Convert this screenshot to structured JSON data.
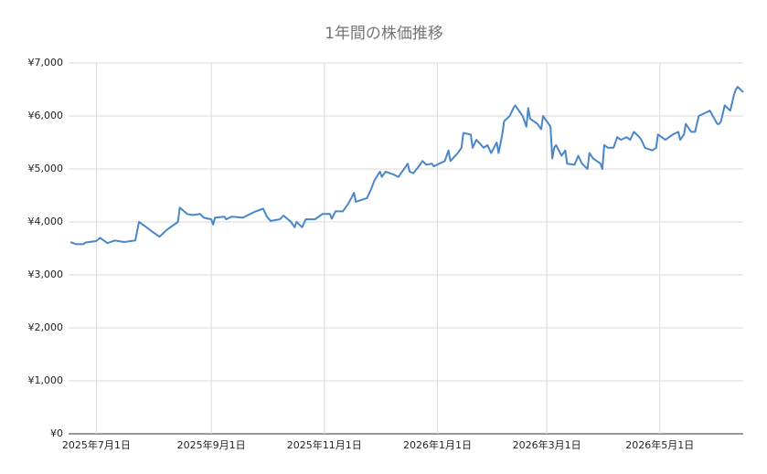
{
  "chart_data": {
    "type": "line",
    "title": "1年間の株価推移",
    "color": "#4a86c8",
    "grid": true,
    "xlim": [
      "2025-06-16",
      "2026-06-15"
    ],
    "xticks": [
      {
        "value": "2025-07-01",
        "label": "2025年7月1日"
      },
      {
        "value": "2025-09-01",
        "label": "2025年9月1日"
      },
      {
        "value": "2025-11-01",
        "label": "2025年11月1日"
      },
      {
        "value": "2026-01-01",
        "label": "2026年1月1日"
      },
      {
        "value": "2026-03-01",
        "label": "2026年3月1日"
      },
      {
        "value": "2026-05-01",
        "label": "2026年5月1日"
      }
    ],
    "ylim": [
      0,
      7000
    ],
    "yticks": [
      {
        "value": 0,
        "label": "¥0"
      },
      {
        "value": 1000,
        "label": "¥1,000"
      },
      {
        "value": 2000,
        "label": "¥2,000"
      },
      {
        "value": 3000,
        "label": "¥3,000"
      },
      {
        "value": 4000,
        "label": "¥4,000"
      },
      {
        "value": 5000,
        "label": "¥5,000"
      },
      {
        "value": 6000,
        "label": "¥6,000"
      },
      {
        "value": 7000,
        "label": "¥7,000"
      }
    ],
    "x": [
      "2025-06-17",
      "2025-06-20",
      "2025-06-24",
      "2025-06-25",
      "2025-07-01",
      "2025-07-03",
      "2025-07-07",
      "2025-07-11",
      "2025-07-16",
      "2025-07-22",
      "2025-07-24",
      "2025-07-28",
      "2025-07-31",
      "2025-08-04",
      "2025-08-08",
      "2025-08-14",
      "2025-08-15",
      "2025-08-19",
      "2025-08-22",
      "2025-08-26",
      "2025-08-28",
      "2025-09-01",
      "2025-09-02",
      "2025-09-03",
      "2025-09-08",
      "2025-09-09",
      "2025-09-12",
      "2025-09-18",
      "2025-09-22",
      "2025-09-25",
      "2025-09-29",
      "2025-10-01",
      "2025-10-03",
      "2025-10-08",
      "2025-10-10",
      "2025-10-14",
      "2025-10-16",
      "2025-10-17",
      "2025-10-20",
      "2025-10-22",
      "2025-10-27",
      "2025-10-31",
      "2025-11-04",
      "2025-11-05",
      "2025-11-07",
      "2025-11-11",
      "2025-11-14",
      "2025-11-17",
      "2025-11-18",
      "2025-11-24",
      "2025-11-26",
      "2025-11-28",
      "2025-12-01",
      "2025-12-02",
      "2025-12-04",
      "2025-12-08",
      "2025-12-11",
      "2025-12-15",
      "2025-12-16",
      "2025-12-17",
      "2025-12-19",
      "2025-12-22",
      "2025-12-24",
      "2025-12-26",
      "2025-12-29",
      "2025-12-30",
      "2026-01-05",
      "2026-01-07",
      "2026-01-08",
      "2026-01-12",
      "2026-01-14",
      "2026-01-15",
      "2026-01-19",
      "2026-01-20",
      "2026-01-22",
      "2026-01-26",
      "2026-01-28",
      "2026-01-30",
      "2026-02-02",
      "2026-02-03",
      "2026-02-05",
      "2026-02-06",
      "2026-02-09",
      "2026-02-11",
      "2026-02-12",
      "2026-02-16",
      "2026-02-18",
      "2026-02-19",
      "2026-02-20",
      "2026-02-24",
      "2026-02-26",
      "2026-02-27",
      "2026-03-03",
      "2026-03-04",
      "2026-03-05",
      "2026-03-06",
      "2026-03-09",
      "2026-03-11",
      "2026-03-12",
      "2026-03-16",
      "2026-03-18",
      "2026-03-20",
      "2026-03-23",
      "2026-03-24",
      "2026-03-26",
      "2026-03-30",
      "2026-03-31",
      "2026-04-01",
      "2026-04-03",
      "2026-04-06",
      "2026-04-08",
      "2026-04-10",
      "2026-04-13",
      "2026-04-15",
      "2026-04-17",
      "2026-04-20",
      "2026-04-21",
      "2026-04-23",
      "2026-04-27",
      "2026-04-29",
      "2026-04-30",
      "2026-05-04",
      "2026-05-08",
      "2026-05-11",
      "2026-05-12",
      "2026-05-14",
      "2026-05-15",
      "2026-05-18",
      "2026-05-20",
      "2026-05-22",
      "2026-05-25",
      "2026-05-28",
      "2026-06-01",
      "2026-06-02",
      "2026-06-03",
      "2026-06-05",
      "2026-06-08",
      "2026-06-09",
      "2026-06-10",
      "2026-06-11",
      "2026-06-12",
      "2026-06-15"
    ],
    "values": [
      3620,
      3580,
      3580,
      3610,
      3640,
      3700,
      3600,
      3650,
      3620,
      3650,
      4000,
      3900,
      3820,
      3720,
      3850,
      4000,
      4270,
      4150,
      4130,
      4150,
      4080,
      4050,
      3950,
      4080,
      4100,
      4050,
      4100,
      4080,
      4150,
      4200,
      4250,
      4100,
      4020,
      4050,
      4120,
      4000,
      3900,
      4000,
      3900,
      4050,
      4050,
      4150,
      4150,
      4060,
      4200,
      4200,
      4350,
      4550,
      4380,
      4450,
      4600,
      4780,
      4950,
      4850,
      4950,
      4900,
      4850,
      5050,
      5100,
      4950,
      4920,
      5050,
      5150,
      5080,
      5100,
      5050,
      5150,
      5350,
      5150,
      5300,
      5400,
      5680,
      5650,
      5400,
      5550,
      5400,
      5450,
      5300,
      5500,
      5300,
      5650,
      5900,
      6000,
      6150,
      6200,
      6000,
      5800,
      6150,
      5950,
      5850,
      5750,
      6000,
      5800,
      5200,
      5400,
      5450,
      5250,
      5350,
      5100,
      5080,
      5250,
      5100,
      5000,
      5300,
      5200,
      5100,
      5000,
      5450,
      5400,
      5400,
      5600,
      5550,
      5600,
      5550,
      5700,
      5600,
      5550,
      5400,
      5350,
      5400,
      5650,
      5550,
      5650,
      5700,
      5550,
      5650,
      5850,
      5700,
      5700,
      6000,
      6050,
      6100,
      5850,
      5850,
      5900,
      6200,
      6100,
      6250,
      6400,
      6500,
      6550,
      6450
    ]
  }
}
